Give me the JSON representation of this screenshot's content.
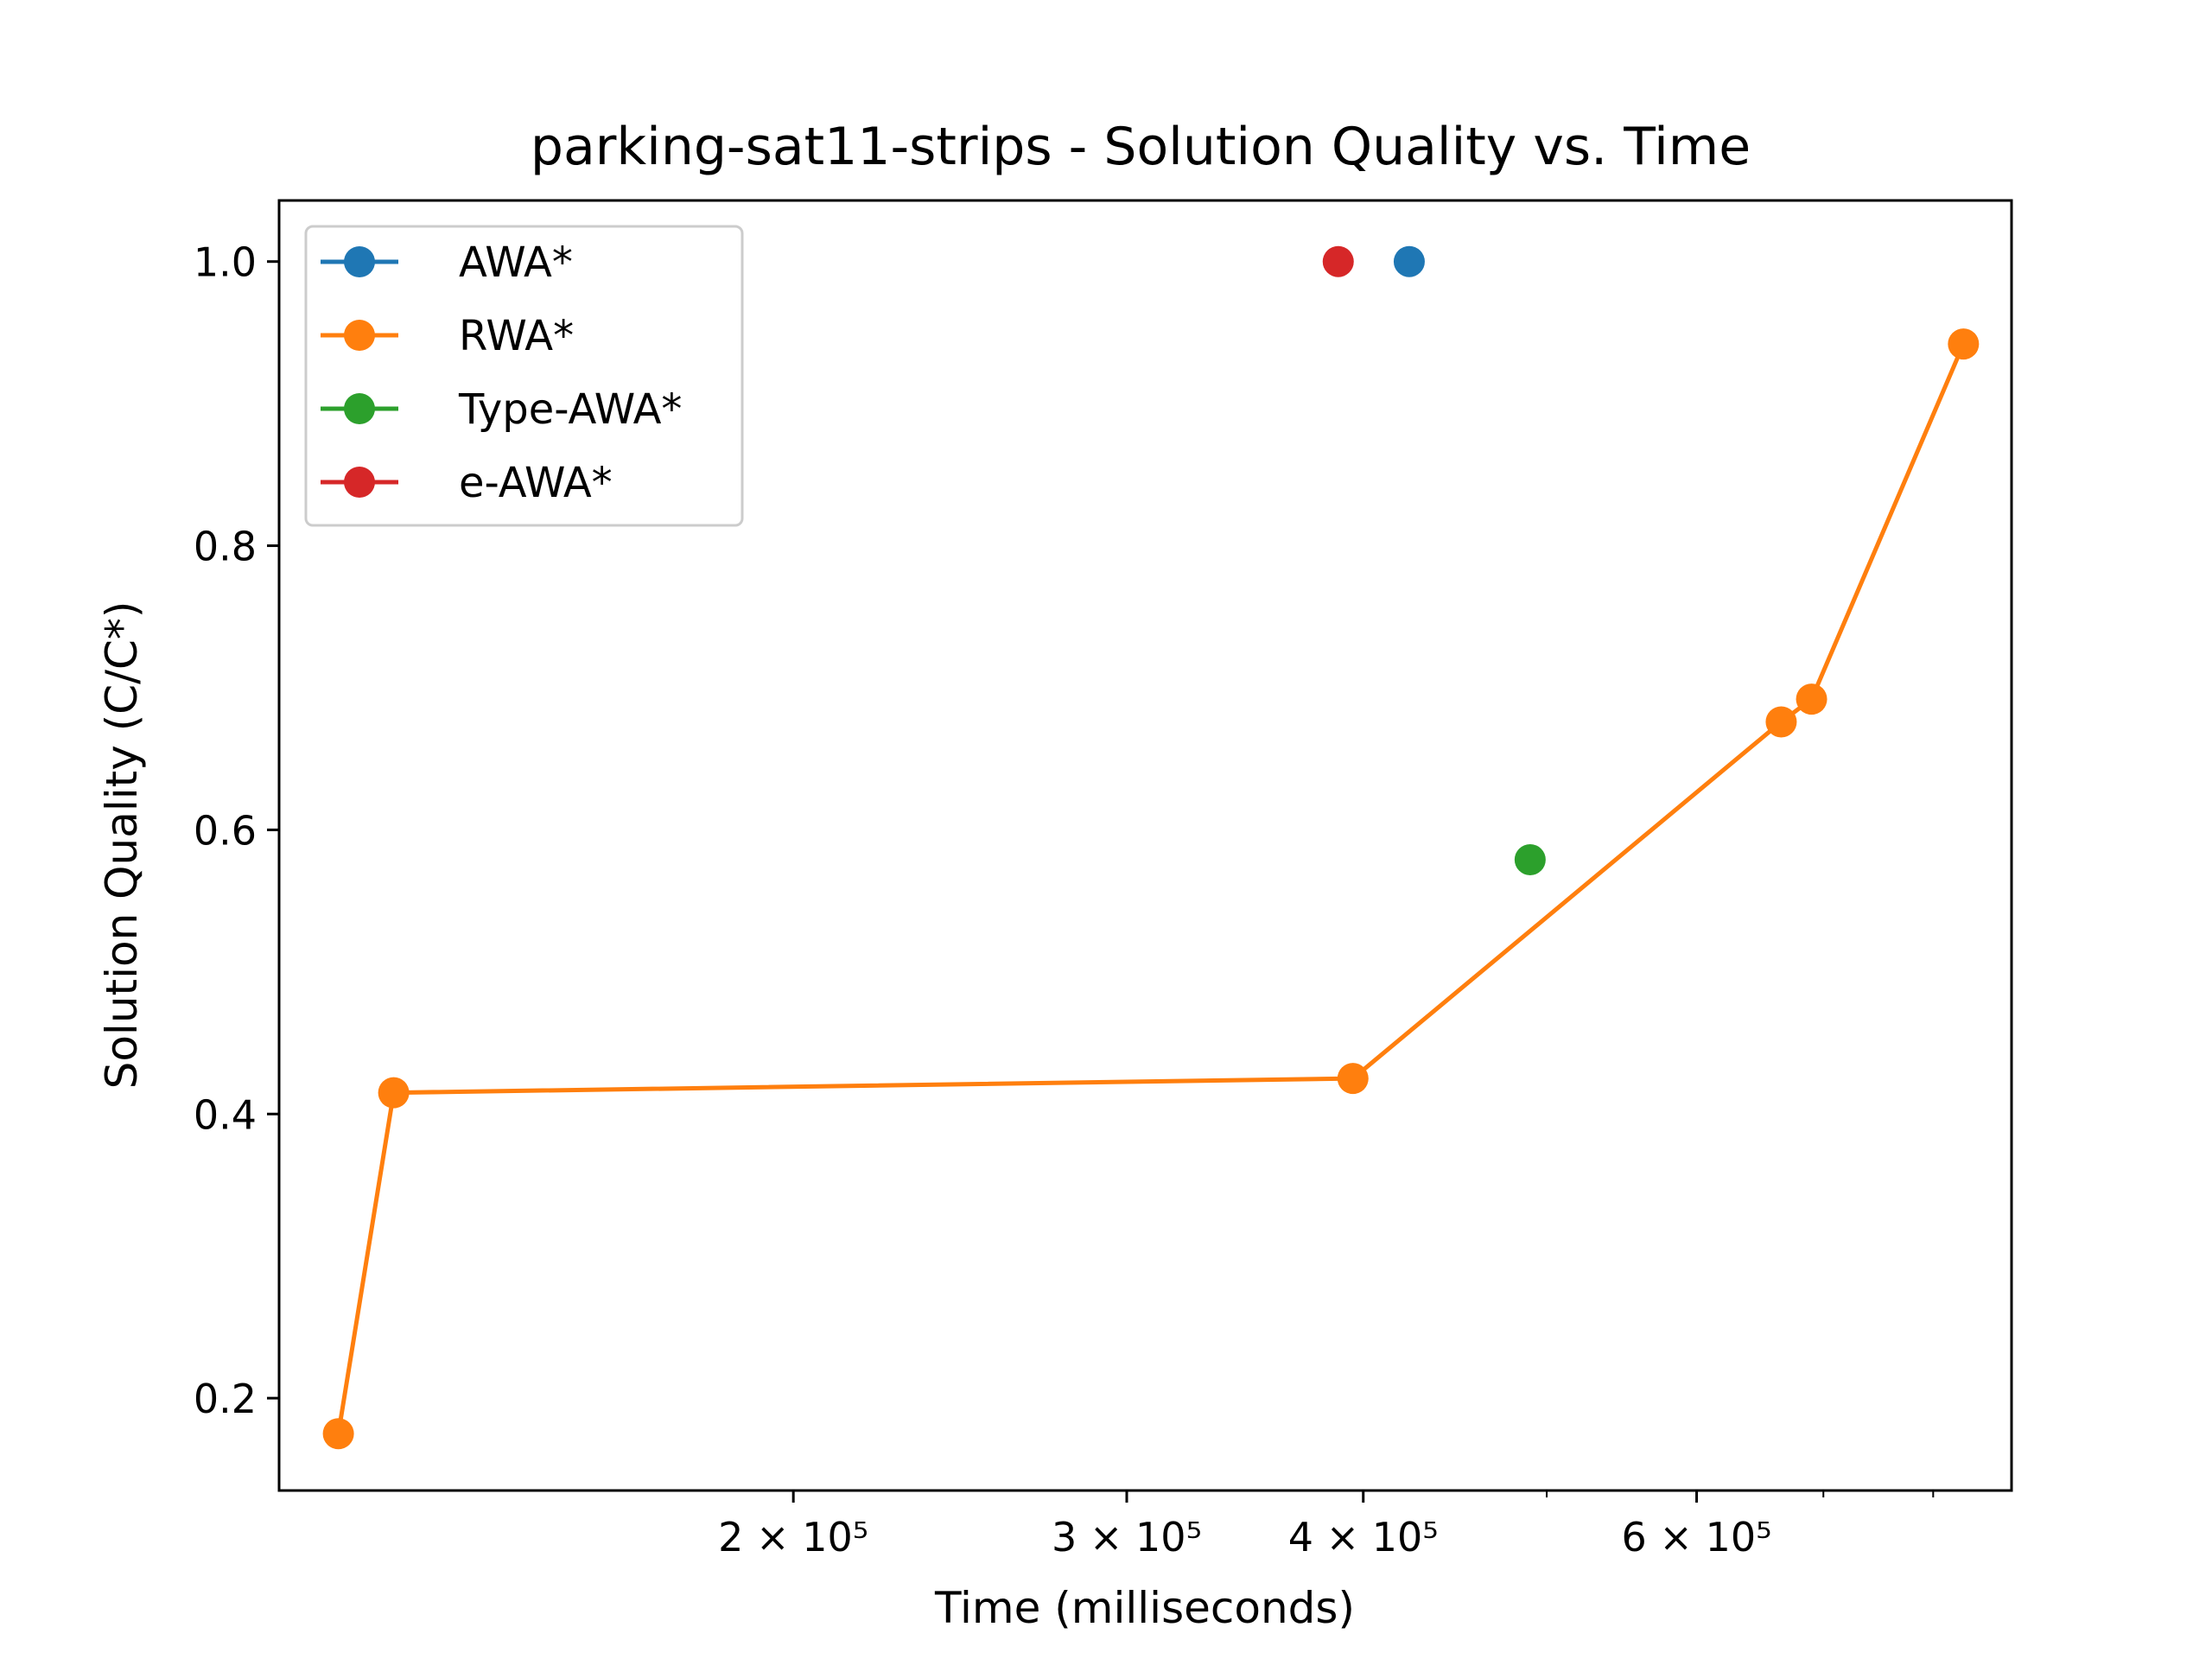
{
  "chart_data": {
    "type": "line",
    "title": "parking-sat11-strips - Solution Quality vs. Time",
    "xlabel": "Time (milliseconds)",
    "ylabel": "Solution Quality (C/C*)",
    "xscale": "log",
    "xlim": [
      107000,
      880000
    ],
    "ylim": [
      0.135,
      1.043
    ],
    "grid": false,
    "legend_position": "top-left",
    "x_ticks": [
      {
        "value": 200000,
        "label": "2 × 10⁵"
      },
      {
        "value": 300000,
        "label": "3 × 10⁵"
      },
      {
        "value": 400000,
        "label": "4 × 10⁵"
      },
      {
        "value": 600000,
        "label": "6 × 10⁵"
      }
    ],
    "x_minor_ticks": [
      500000,
      700000,
      800000
    ],
    "y_ticks": [
      {
        "value": 0.2,
        "label": "0.2"
      },
      {
        "value": 0.4,
        "label": "0.4"
      },
      {
        "value": 0.6,
        "label": "0.6"
      },
      {
        "value": 0.8,
        "label": "0.8"
      },
      {
        "value": 1.0,
        "label": "1.0"
      }
    ],
    "series": [
      {
        "name": "AWA*",
        "color": "#1f77b4",
        "x": [
          423000
        ],
        "y": [
          1.0
        ]
      },
      {
        "name": "RWA*",
        "color": "#ff7f0e",
        "x": [
          115000,
          123000,
          395000,
          665000,
          690000,
          830000
        ],
        "y": [
          0.175,
          0.415,
          0.425,
          0.676,
          0.692,
          0.942
        ]
      },
      {
        "name": "Type-AWA*",
        "color": "#2ca02c",
        "x": [
          490000
        ],
        "y": [
          0.579
        ]
      },
      {
        "name": "e-AWA*",
        "color": "#d62728",
        "x": [
          388000
        ],
        "y": [
          1.0
        ]
      }
    ]
  }
}
